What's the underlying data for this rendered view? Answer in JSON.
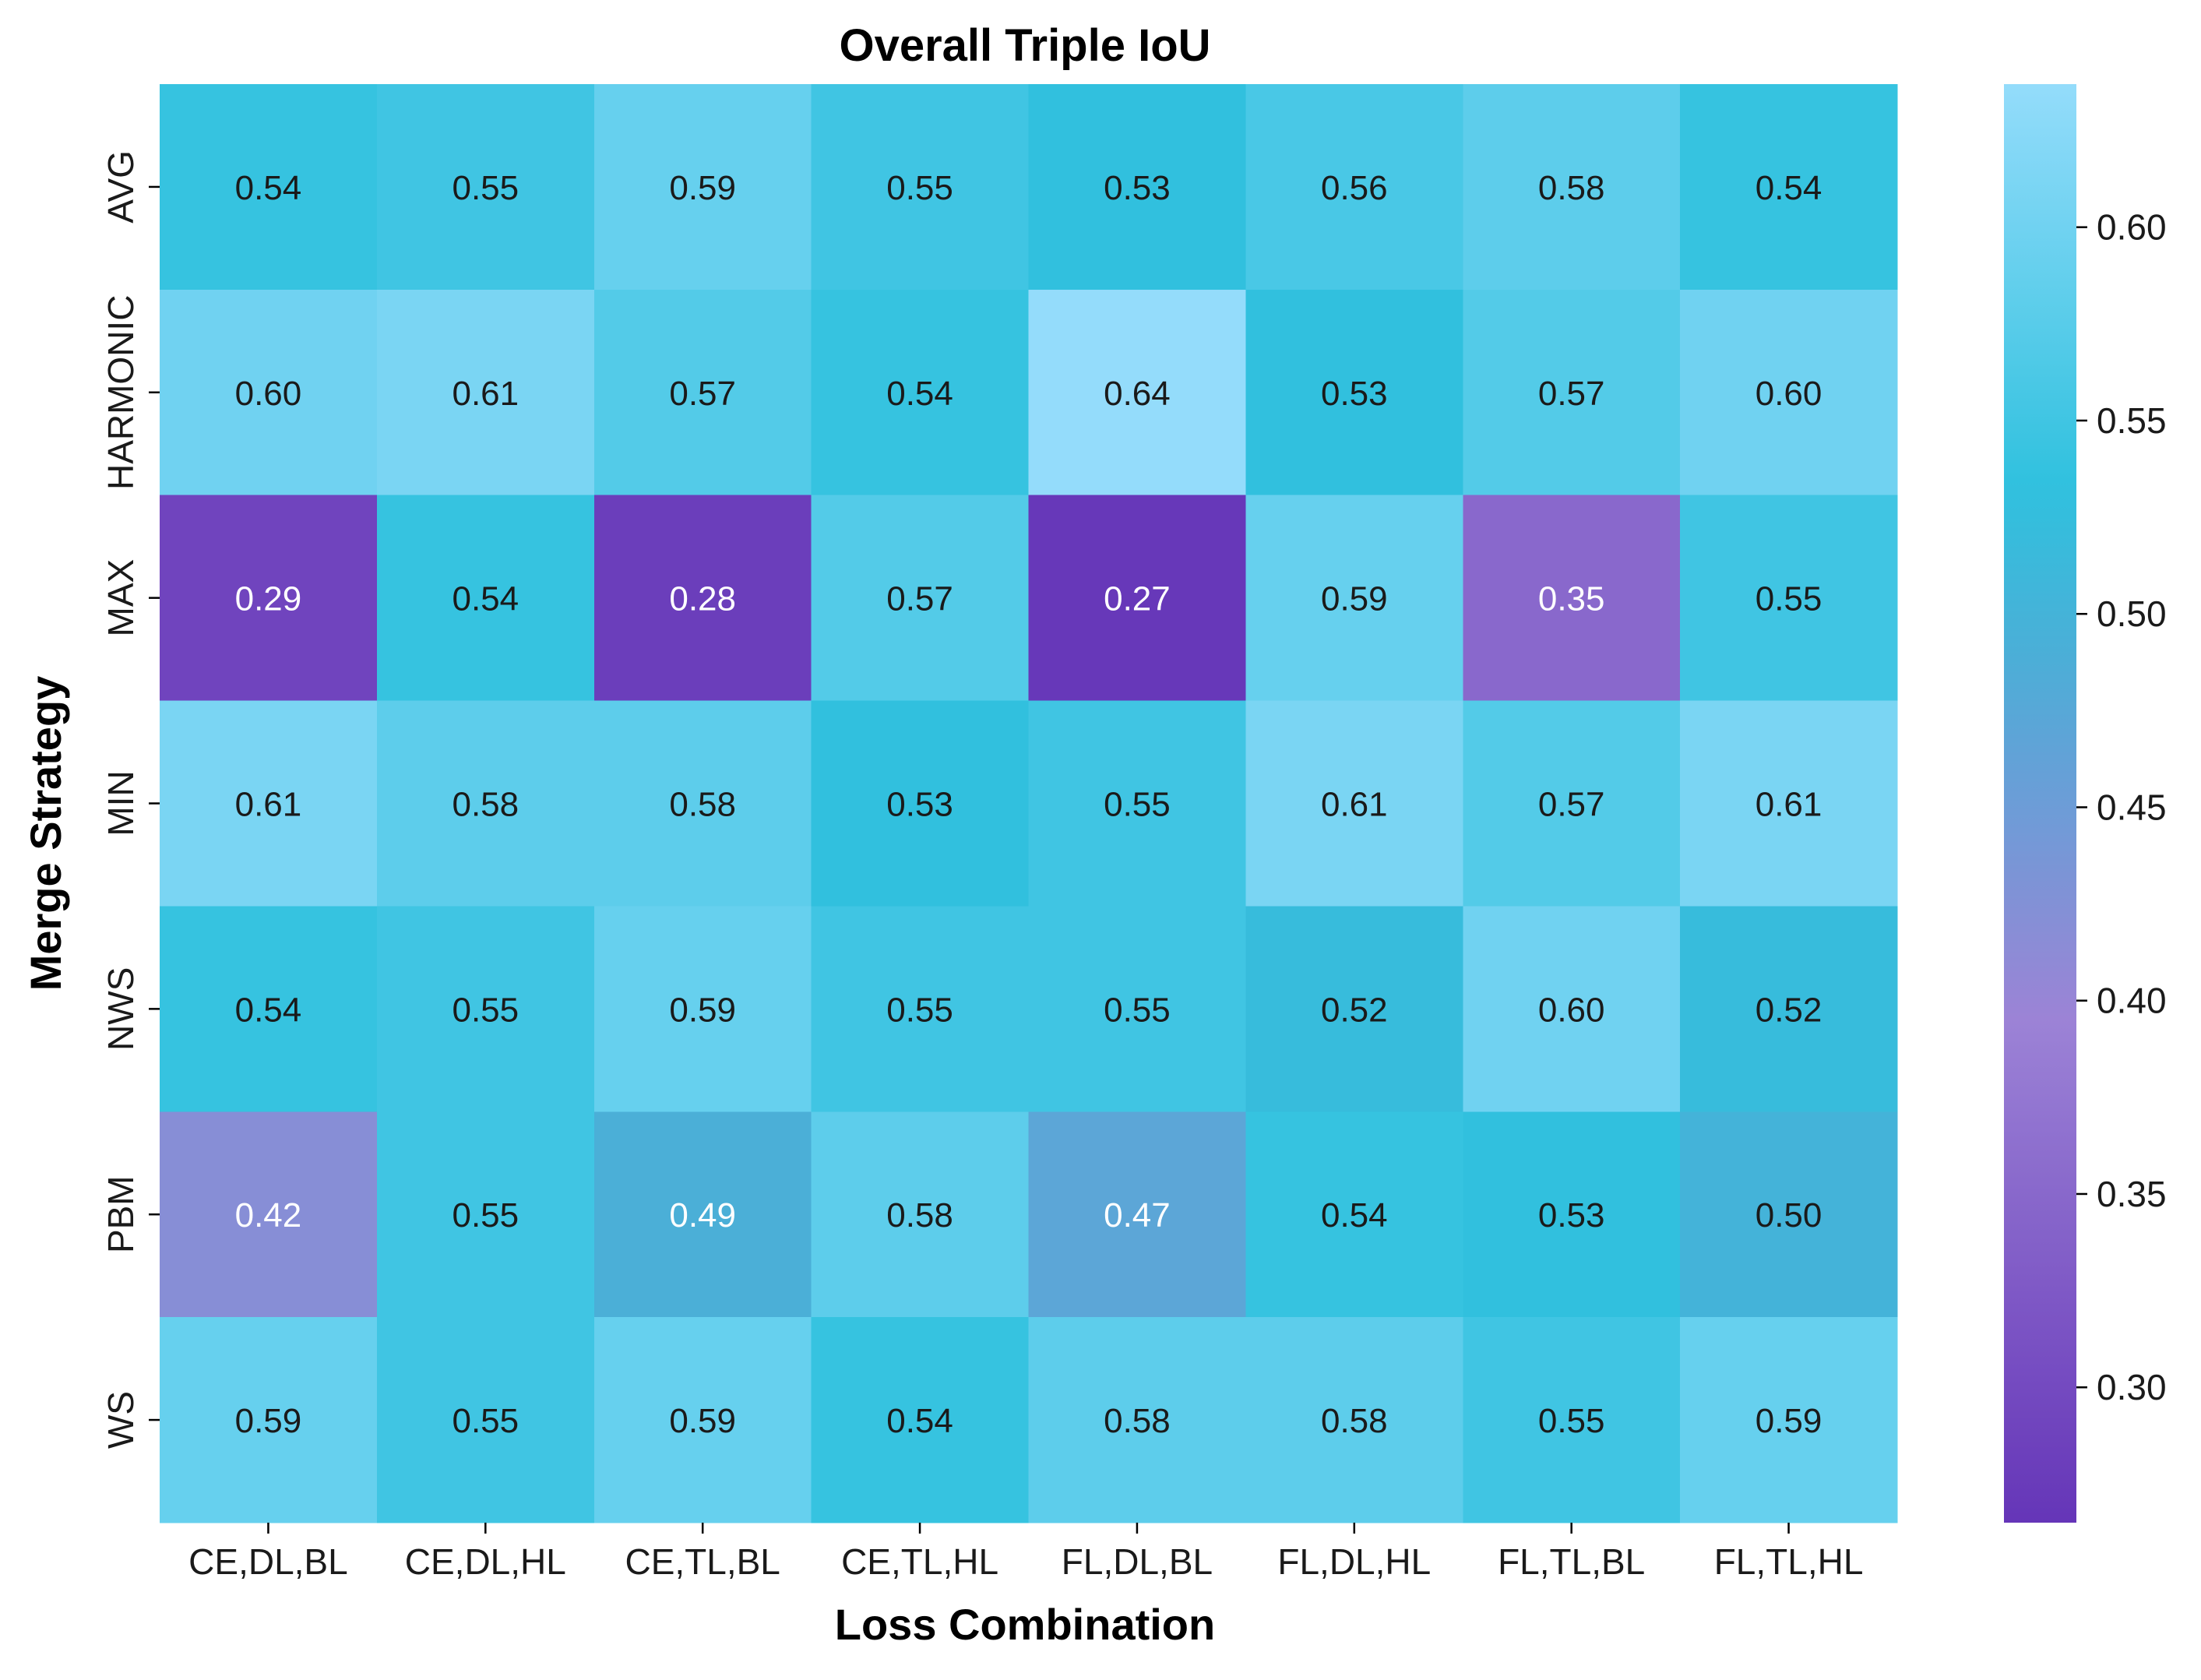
{
  "chart_data": {
    "type": "heatmap",
    "title": "Overall Triple IoU",
    "xlabel": "Loss Combination",
    "ylabel": "Merge Strategy",
    "x_categories": [
      "CE,DL,BL",
      "CE,DL,HL",
      "CE,TL,BL",
      "CE,TL,HL",
      "FL,DL,BL",
      "FL,DL,HL",
      "FL,TL,BL",
      "FL,TL,HL"
    ],
    "y_categories": [
      "AVG",
      "HARMONIC",
      "MAX",
      "MIN",
      "NWS",
      "PBM",
      "WS"
    ],
    "values": [
      [
        0.54,
        0.55,
        0.59,
        0.55,
        0.53,
        0.56,
        0.58,
        0.54
      ],
      [
        0.6,
        0.61,
        0.57,
        0.54,
        0.64,
        0.53,
        0.57,
        0.6
      ],
      [
        0.29,
        0.54,
        0.28,
        0.57,
        0.27,
        0.59,
        0.35,
        0.55
      ],
      [
        0.61,
        0.58,
        0.58,
        0.53,
        0.55,
        0.61,
        0.57,
        0.61
      ],
      [
        0.54,
        0.55,
        0.59,
        0.55,
        0.55,
        0.52,
        0.6,
        0.52
      ],
      [
        0.42,
        0.55,
        0.49,
        0.58,
        0.47,
        0.54,
        0.53,
        0.5
      ],
      [
        0.59,
        0.55,
        0.59,
        0.54,
        0.58,
        0.58,
        0.55,
        0.59
      ]
    ],
    "value_format": "0.00",
    "colorbar": {
      "vmin": 0.265,
      "vmax": 0.637,
      "ticks": [
        "0.30",
        "0.35",
        "0.40",
        "0.45",
        "0.50",
        "0.55",
        "0.60"
      ],
      "colors": [
        "#6535b8",
        "#9c83d6",
        "#4caed7",
        "#2fc1de",
        "#94dcfb"
      ],
      "stops": [
        0.0,
        0.35,
        0.6,
        0.72,
        1.0
      ]
    },
    "text_colors": {
      "dark": "#1a1a1a",
      "light": "#ffffff"
    },
    "light_text_threshold": 0.5,
    "grid": false
  }
}
